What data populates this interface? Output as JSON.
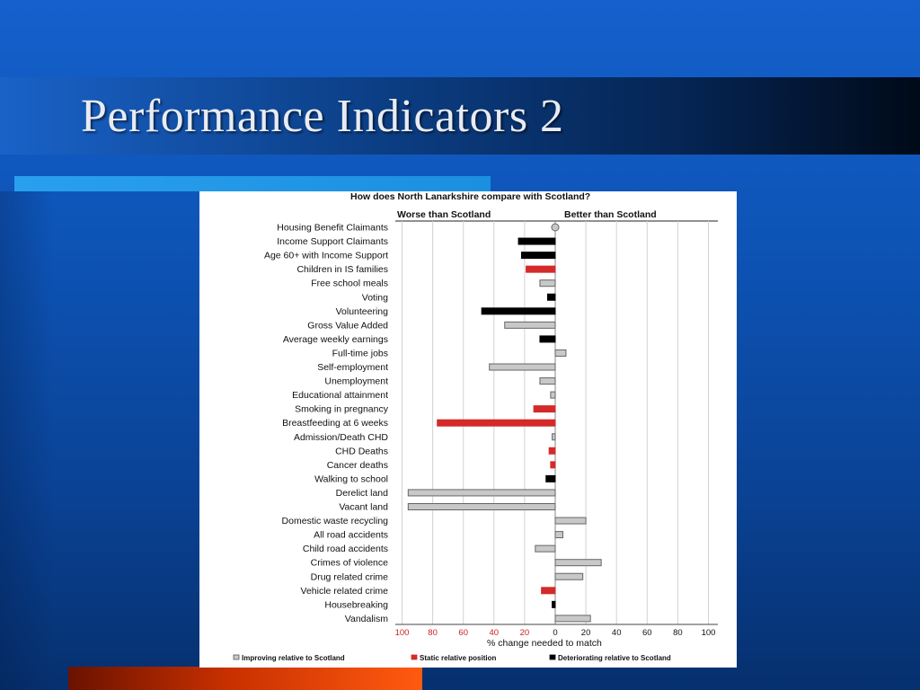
{
  "slide": {
    "title": "Performance Indicators 2"
  },
  "colors": {
    "improving": "#c8c8c8",
    "static": "#d42a2a",
    "deteriorating": "#000000",
    "accent": "#1b8fe0"
  },
  "chart_data": {
    "type": "bar",
    "orientation": "horizontal-diverging",
    "title": "How does North Lanarkshire compare with Scotland?",
    "left_header": "Worse than Scotland",
    "right_header": "Better than Scotland",
    "xlabel": "% change needed  to match",
    "xlim": [
      -100,
      100
    ],
    "ticks": [
      -100,
      -80,
      -60,
      -40,
      -20,
      0,
      20,
      40,
      60,
      80,
      100
    ],
    "tick_labels": [
      "100",
      "80",
      "60",
      "40",
      "20",
      "0",
      "20",
      "40",
      "60",
      "80",
      "100"
    ],
    "grid": true,
    "legend_position": "bottom",
    "legend": [
      {
        "key": "improving",
        "label": "Improving relative to Scotland"
      },
      {
        "key": "static",
        "label": "Static relative position"
      },
      {
        "key": "deteriorating",
        "label": "Deteriorating relative to Scotland"
      }
    ],
    "categories": [
      "Housing Benefit Claimants",
      "Income Support Claimants",
      "Age 60+ with Income Support",
      "Children in IS families",
      "Free school meals",
      "Voting",
      "Volunteering",
      "Gross Value Added",
      "Average weekly earnings",
      "Full-time jobs",
      "Self-employment",
      "Unemployment",
      "Educational attainment",
      "Smoking in pregnancy",
      "Breastfeeding at 6 weeks",
      "Admission/Death CHD",
      "CHD Deaths",
      "Cancer deaths",
      "Walking to school",
      "Derelict land",
      "Vacant land",
      "Domestic waste recycling",
      "All road accidents",
      "Child road accidents",
      "Crimes of violence",
      "Drug related crime",
      "Vehicle related crime",
      "Housebreaking",
      "Vandalism"
    ],
    "values": [
      0,
      -24,
      -22,
      -19,
      -10,
      -5,
      -48,
      -33,
      -10,
      7,
      -43,
      -10,
      -3,
      -14,
      -77,
      -2,
      -4,
      -3,
      -6,
      -96,
      -96,
      20,
      5,
      -13,
      30,
      18,
      -9,
      -2,
      23
    ],
    "status": [
      "improving",
      "deteriorating",
      "deteriorating",
      "static",
      "improving",
      "deteriorating",
      "deteriorating",
      "improving",
      "deteriorating",
      "improving",
      "improving",
      "improving",
      "improving",
      "static",
      "static",
      "improving",
      "static",
      "static",
      "deteriorating",
      "improving",
      "improving",
      "improving",
      "improving",
      "improving",
      "improving",
      "improving",
      "static",
      "deteriorating",
      "improving"
    ]
  }
}
